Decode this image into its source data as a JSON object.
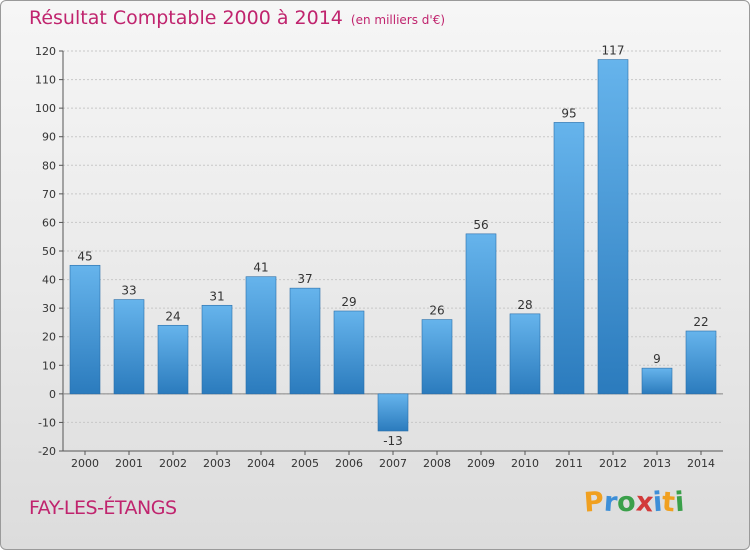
{
  "chart_data": {
    "type": "bar",
    "title": "Résultat Comptable 2000 à 2014",
    "subtitle": "(en milliers d'€)",
    "categories": [
      "2000",
      "2001",
      "2002",
      "2003",
      "2004",
      "2005",
      "2006",
      "2007",
      "2008",
      "2009",
      "2010",
      "2011",
      "2012",
      "2013",
      "2014"
    ],
    "values": [
      45,
      33,
      24,
      31,
      41,
      37,
      29,
      -13,
      26,
      56,
      28,
      95,
      117,
      9,
      22
    ],
    "ylim": [
      -20,
      120
    ],
    "yticks": [
      -20,
      -10,
      0,
      10,
      20,
      30,
      40,
      50,
      60,
      70,
      80,
      90,
      100,
      110,
      120
    ],
    "grid": true,
    "xlabel": "",
    "ylabel": ""
  },
  "commune": "FAY-LES-ÉTANGS",
  "logo": {
    "text": "Proxiti",
    "letters": [
      "P",
      "r",
      "o",
      "x",
      "i",
      "t",
      "i"
    ],
    "colors": [
      "#f0a020",
      "#3d8fd8",
      "#3aa04a",
      "#d23a3a",
      "#3d8fd8",
      "#f0a020",
      "#3aa04a"
    ]
  },
  "colors": {
    "bar_light": "#66b4ec",
    "bar_dark": "#2b7bbd",
    "accent": "#c0246e"
  }
}
